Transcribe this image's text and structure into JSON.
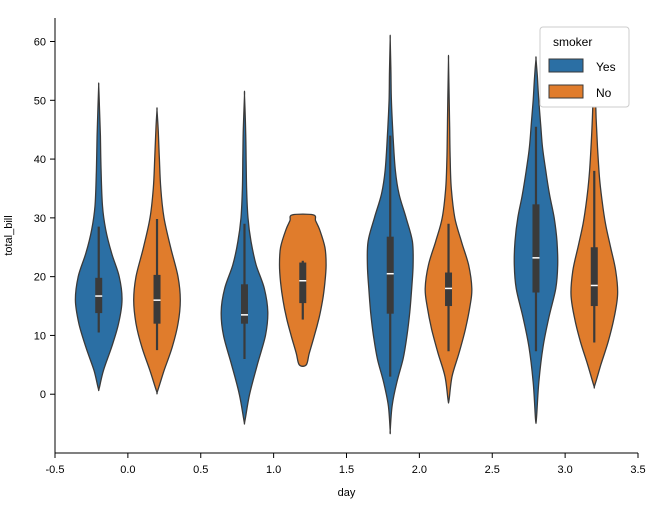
{
  "chart_data": {
    "type": "violin",
    "xlabel": "day",
    "ylabel": "total_bill",
    "xlim": [
      -0.5,
      3.5
    ],
    "ylim": [
      -10,
      64
    ],
    "xticks": [
      -0.5,
      0.0,
      0.5,
      1.0,
      1.5,
      2.0,
      2.5,
      3.0,
      3.5
    ],
    "xtick_labels": [
      "-0.5",
      "0.0",
      "0.5",
      "1.0",
      "1.5",
      "2.0",
      "2.5",
      "3.0",
      "3.5"
    ],
    "yticks": [
      0,
      10,
      20,
      30,
      40,
      50,
      60
    ],
    "ytick_labels": [
      "0",
      "10",
      "20",
      "30",
      "40",
      "50",
      "60"
    ],
    "grid": false,
    "legend": {
      "title": "smoker",
      "position": "top-right",
      "entries": [
        "Yes",
        "No"
      ]
    },
    "colors": {
      "Yes": "#2b6fa4",
      "No": "#e07c2c"
    },
    "violins": [
      {
        "group": "Yes",
        "x": -0.2,
        "extent": [
          1,
          52.5
        ],
        "whisker": [
          10.5,
          28.5
        ],
        "q1": 13.8,
        "median": 16.7,
        "q3": 19.8,
        "profile": [
          [
            1,
            0.02
          ],
          [
            4,
            0.2
          ],
          [
            8,
            0.55
          ],
          [
            12,
            0.85
          ],
          [
            16,
            1.0
          ],
          [
            20,
            0.88
          ],
          [
            24,
            0.55
          ],
          [
            28,
            0.3
          ],
          [
            32,
            0.16
          ],
          [
            38,
            0.1
          ],
          [
            44,
            0.07
          ],
          [
            49,
            0.03
          ],
          [
            52.5,
            0
          ]
        ]
      },
      {
        "group": "No",
        "x": 0.2,
        "extent": [
          0.5,
          48.3
        ],
        "whisker": [
          7.5,
          29.8
        ],
        "q1": 12.0,
        "median": 16.0,
        "q3": 20.3,
        "profile": [
          [
            0.5,
            0.02
          ],
          [
            4,
            0.3
          ],
          [
            8,
            0.65
          ],
          [
            12,
            0.9
          ],
          [
            16,
            1.0
          ],
          [
            20,
            0.9
          ],
          [
            25,
            0.58
          ],
          [
            30,
            0.3
          ],
          [
            35,
            0.16
          ],
          [
            40,
            0.1
          ],
          [
            45,
            0.05
          ],
          [
            48.3,
            0
          ]
        ]
      },
      {
        "group": "Yes",
        "x": 0.8,
        "extent": [
          -4.5,
          50.8
        ],
        "whisker": [
          6,
          29
        ],
        "q1": 12.0,
        "median": 13.5,
        "q3": 18.7,
        "profile": [
          [
            -4.5,
            0.02
          ],
          [
            0,
            0.22
          ],
          [
            5,
            0.55
          ],
          [
            10,
            0.9
          ],
          [
            14,
            1.0
          ],
          [
            18,
            0.85
          ],
          [
            22,
            0.5
          ],
          [
            26,
            0.28
          ],
          [
            30,
            0.15
          ],
          [
            35,
            0.09
          ],
          [
            40,
            0.07
          ],
          [
            45,
            0.05
          ],
          [
            50.8,
            0
          ]
        ]
      },
      {
        "group": "No",
        "x": 1.2,
        "extent": [
          5,
          30.5
        ],
        "whisker": [
          12.7,
          22.7
        ],
        "q1": 15.5,
        "median": 19.3,
        "q3": 22.4,
        "profile": [
          [
            5,
            0.15
          ],
          [
            7,
            0.28
          ],
          [
            10,
            0.5
          ],
          [
            13,
            0.7
          ],
          [
            16,
            0.85
          ],
          [
            19,
            0.95
          ],
          [
            22,
            1.0
          ],
          [
            25,
            0.95
          ],
          [
            28,
            0.72
          ],
          [
            29.5,
            0.55
          ],
          [
            30.5,
            0.45
          ]
        ]
      },
      {
        "group": "Yes",
        "x": 1.8,
        "extent": [
          -6.2,
          60.4
        ],
        "whisker": [
          3,
          44
        ],
        "q1": 13.7,
        "median": 20.5,
        "q3": 26.8,
        "profile": [
          [
            -6.2,
            0
          ],
          [
            -2,
            0.08
          ],
          [
            2,
            0.28
          ],
          [
            6,
            0.55
          ],
          [
            10,
            0.72
          ],
          [
            14,
            0.84
          ],
          [
            18,
            0.92
          ],
          [
            22,
            0.98
          ],
          [
            26,
            0.95
          ],
          [
            30,
            0.68
          ],
          [
            34,
            0.38
          ],
          [
            38,
            0.22
          ],
          [
            44,
            0.12
          ],
          [
            50,
            0.05
          ],
          [
            55,
            0.03
          ],
          [
            60.4,
            0
          ]
        ]
      },
      {
        "group": "No",
        "x": 2.2,
        "extent": [
          -1,
          56.8
        ],
        "whisker": [
          7.3,
          29
        ],
        "q1": 15.0,
        "median": 18.0,
        "q3": 20.7,
        "profile": [
          [
            -1,
            0.02
          ],
          [
            3,
            0.15
          ],
          [
            7,
            0.45
          ],
          [
            11,
            0.72
          ],
          [
            15,
            0.92
          ],
          [
            18,
            1.0
          ],
          [
            22,
            0.86
          ],
          [
            26,
            0.55
          ],
          [
            30,
            0.27
          ],
          [
            35,
            0.12
          ],
          [
            40,
            0.07
          ],
          [
            45,
            0.05
          ],
          [
            50,
            0.03
          ],
          [
            56.8,
            0
          ]
        ]
      },
      {
        "group": "Yes",
        "x": 2.8,
        "extent": [
          -4.2,
          57
        ],
        "whisker": [
          7.3,
          45.5
        ],
        "q1": 17.3,
        "median": 23.2,
        "q3": 32.3,
        "profile": [
          [
            -4.2,
            0.02
          ],
          [
            2,
            0.12
          ],
          [
            8,
            0.3
          ],
          [
            13,
            0.55
          ],
          [
            18,
            0.85
          ],
          [
            22,
            0.93
          ],
          [
            26,
            0.9
          ],
          [
            30,
            0.78
          ],
          [
            34,
            0.58
          ],
          [
            38,
            0.42
          ],
          [
            42,
            0.28
          ],
          [
            46,
            0.2
          ],
          [
            50,
            0.12
          ],
          [
            54,
            0.06
          ],
          [
            57,
            0
          ]
        ]
      },
      {
        "group": "No",
        "x": 3.2,
        "extent": [
          1.5,
          55.5
        ],
        "whisker": [
          8.8,
          38
        ],
        "q1": 15.0,
        "median": 18.5,
        "q3": 25.0,
        "profile": [
          [
            1.5,
            0.02
          ],
          [
            5,
            0.28
          ],
          [
            9,
            0.6
          ],
          [
            13,
            0.85
          ],
          [
            17,
            1.0
          ],
          [
            21,
            0.92
          ],
          [
            25,
            0.7
          ],
          [
            29,
            0.48
          ],
          [
            33,
            0.33
          ],
          [
            37,
            0.22
          ],
          [
            42,
            0.14
          ],
          [
            47,
            0.08
          ],
          [
            52,
            0.04
          ],
          [
            55.5,
            0
          ]
        ]
      }
    ]
  }
}
